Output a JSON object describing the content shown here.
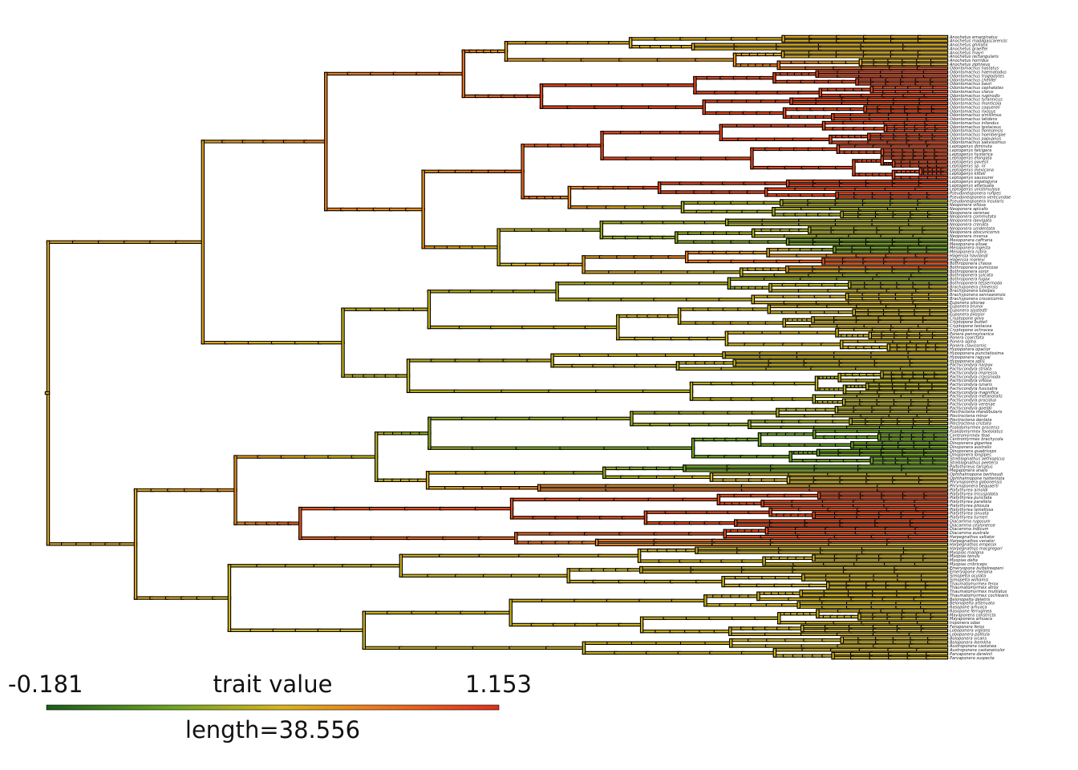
{
  "legend": {
    "min_label": "-0.181",
    "title": "trait value",
    "max_label": "1.153",
    "length_label": "length=38.556",
    "colors": [
      "#1a5c1a",
      "#6fa51f",
      "#d8b41c",
      "#ee7a1c",
      "#e0301a"
    ]
  },
  "chart_data": {
    "type": "phylogenetic-tree (contMap)",
    "trait_range": [
      -0.181,
      1.153
    ],
    "tree_length": 38.556,
    "tip_count": 160,
    "tip_labels": [
      "Anochetus emarginatus",
      "Anochetus madagascarensis",
      "Anochetus ghilianii",
      "Anochetus graeffei",
      "Anochetus mayri",
      "Anochetus rectangularis",
      "Anochetus horridus",
      "Anochetus ziphneus",
      "Odontomachus hastatus",
      "Odontomachus haematodus",
      "Odontomachus troglodytes",
      "Odontomachus chelifer",
      "Odontomachus bauri",
      "Odontomachus cephalotes",
      "Odontomachus clarus",
      "Odontomachus ruginodis",
      "Odontomachus tyrannicus",
      "Odontomachus monticola",
      "Odontomachus coquereli",
      "Odontomachus rixosus",
      "Odontomachus simillimus",
      "Odontomachus latidens",
      "Odontomachus infandus",
      "Odontomachus testaceus",
      "Odontomachus floresensis",
      "Odontomachus hoenbergae",
      "Odontomachus papuanus",
      "Odontomachus saevissimus",
      "Leptogenys diminuta",
      "Leptogenys falcigera",
      "Leptogenys hysterica",
      "Leptogenys elongata",
      "Leptogenys pavesii",
      "Leptogenys sp. nr",
      "Leptogenys mexicana",
      "Leptogenys kitteli",
      "Leptogenys saussurei",
      "Leptogenys ergatogyna",
      "Leptogenys attenuata",
      "Leptogenys unistimulosa",
      "Pseudoneoponera rufipes",
      "Pseudoneoponera verecundae",
      "Pseudoneoponera insularis",
      "Neoponera villosa",
      "Neoponera apicalis",
      "Neoponera verenae",
      "Neoponera commutata",
      "Neoponera laevigata",
      "Neoponera crenata",
      "Neoponera unidentata",
      "Neoponera obscuricornis",
      "Neoponera inversa",
      "Mesoponera caffraria",
      "Mesoponera elisae",
      "Mesoponera ingesta",
      "Mesoponera rubra",
      "Hagensia havilandi",
      "Hagensia marleyi",
      "Bothroponera crassa",
      "Bothroponera pumicosa",
      "Bothroponera soror",
      "Bothroponera sulcata",
      "Bothroponera fugax",
      "Bothroponera tesserinoda",
      "Brachyponera chinensis",
      "Brachyponera luteipes",
      "Brachyponera sennaarensis",
      "Brachyponera croceicornis",
      "Euponera sikorae",
      "Euponera brunoi",
      "Euponera sjostedti",
      "Euponera pilosior",
      "Cryptopone gilva",
      "Cryptopone butteli",
      "Cryptopone testacea",
      "Cryptopone ochracea",
      "Ponera pennsylvanica",
      "Ponera coarctata",
      "Ponera alpha",
      "Ponera clavicornis",
      "Hypoponera opacior",
      "Hypoponera punctatissima",
      "Hypoponera ragusai",
      "Hypoponera sp01",
      "Pachycondyla harpax",
      "Pachycondyla striata",
      "Pachycondyla impressa",
      "Pachycondyla crassinoda",
      "Pachycondyla villosa",
      "Pachycondyla lunaris",
      "Pachycondyla fuscoatra",
      "Pachycondyla magnifica",
      "Pachycondyla metanotalis",
      "Pachycondyla procidua",
      "Pachycondyla verenae",
      "Pachycondyla goeldii",
      "Plectroctena mandibularis",
      "Plectroctena minor",
      "Plectroctena dentata",
      "Plectroctena cristata",
      "Psalidomyrmex procerus",
      "Psalidomyrmex foveolatus",
      "Centromyrmex feae",
      "Centromyrmex brachycola",
      "Dinoponera gigantea",
      "Dinoponera australis",
      "Dinoponera quadriceps",
      "Dinoponera longipes",
      "Streblognathus aethiopicus",
      "Streblognathus peetersi",
      "Paltothyreus tarsatus",
      "Megaponera analis",
      "Ophthalmopone berthoudi",
      "Ophthalmopone hottentota",
      "Phrynoponera gabonensis",
      "Phrynoponera bequaerti",
      "Platythyrea arnoldi",
      "Platythyrea tricuspidata",
      "Platythyrea punctata",
      "Platythyrea parallela",
      "Platythyrea pilosula",
      "Platythyrea lamellosa",
      "Platythyrea sinuata",
      "Platythyrea turneri",
      "Diacamma rugosum",
      "Diacamma ceylonense",
      "Diacamma indicum",
      "Diacamma australe",
      "Harpegnathos saltator",
      "Harpegnathos venator",
      "Harpegnathos empesoi",
      "Harpegnathos macgregori",
      "Myopias maligna",
      "Myopias tenuis",
      "Myopias delta",
      "Myopias cribriceps",
      "Emeryopone buttelreepeni",
      "Emeryopone melaina",
      "Simopelta oculata",
      "Simopelta williamsi",
      "Thaumatomyrmex ferox",
      "Thaumatomyrmex atrox",
      "Thaumatomyrmex mutilatus",
      "Thaumatomyrmex cochlearis",
      "Belonopelta deletrix",
      "Belonopelta attenuata",
      "Rasopone arhuaca",
      "Rasopone ferruginea",
      "Mayaponera constricta",
      "Mayaponera arhuaca",
      "Iroponera odax",
      "Feroponera ferox",
      "Loboponera vigilans",
      "Loboponera politula",
      "Boloponera vicans",
      "Boloponera ikemkha",
      "Austroponera castanea",
      "Austroponera castaneicolor",
      "Parvaponera darwinii",
      "Parvaponera suspecta"
    ]
  }
}
